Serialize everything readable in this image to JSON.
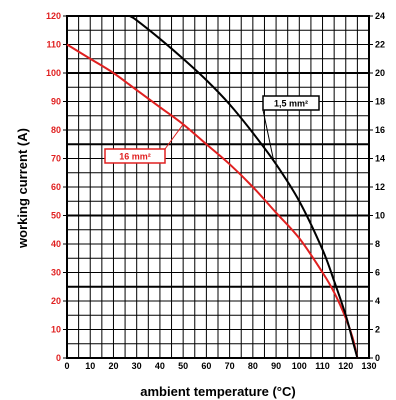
{
  "chart_data": {
    "type": "line",
    "xlabel": "ambient temperature (°C)",
    "ylabel": "working current (A)",
    "xlim": [
      0,
      130
    ],
    "ylim_left": [
      0,
      120
    ],
    "ylim_right": [
      0,
      24
    ],
    "x_ticks": [
      "0",
      "10",
      "20",
      "30",
      "40",
      "50",
      "60",
      "70",
      "80",
      "90",
      "100",
      "110",
      "120",
      "130"
    ],
    "y_left_ticks": [
      "0",
      "10",
      "20",
      "30",
      "40",
      "50",
      "60",
      "70",
      "80",
      "90",
      "100",
      "110",
      "120"
    ],
    "y_right_ticks": [
      "0",
      "2",
      "4",
      "6",
      "8",
      "10",
      "12",
      "14",
      "16",
      "18",
      "20",
      "22",
      "24"
    ],
    "grid": true,
    "series": [
      {
        "name": "16 mm²",
        "axis": "left",
        "color": "#e02020",
        "x": [
          0,
          10,
          20,
          30,
          40,
          50,
          60,
          70,
          80,
          90,
          100,
          110,
          115,
          120,
          123,
          125
        ],
        "y": [
          110,
          105,
          100,
          94,
          88,
          82,
          75,
          68,
          60,
          51,
          42,
          30,
          23,
          14,
          7,
          0
        ]
      },
      {
        "name": "1,5 mm²",
        "axis": "right",
        "color": "#000000",
        "x": [
          27,
          30,
          40,
          50,
          60,
          70,
          80,
          90,
          100,
          110,
          115,
          120,
          123,
          125
        ],
        "y": [
          24,
          23.7,
          22.4,
          21.0,
          19.5,
          17.8,
          15.8,
          13.6,
          11.0,
          7.6,
          5.4,
          3.0,
          1.2,
          0
        ]
      }
    ],
    "annotations": [
      {
        "text": "16 mm²",
        "color": "#e02020",
        "target_series": "16 mm²"
      },
      {
        "text": "1,5 mm²",
        "color": "#000000",
        "target_series": "1,5 mm²"
      }
    ]
  }
}
